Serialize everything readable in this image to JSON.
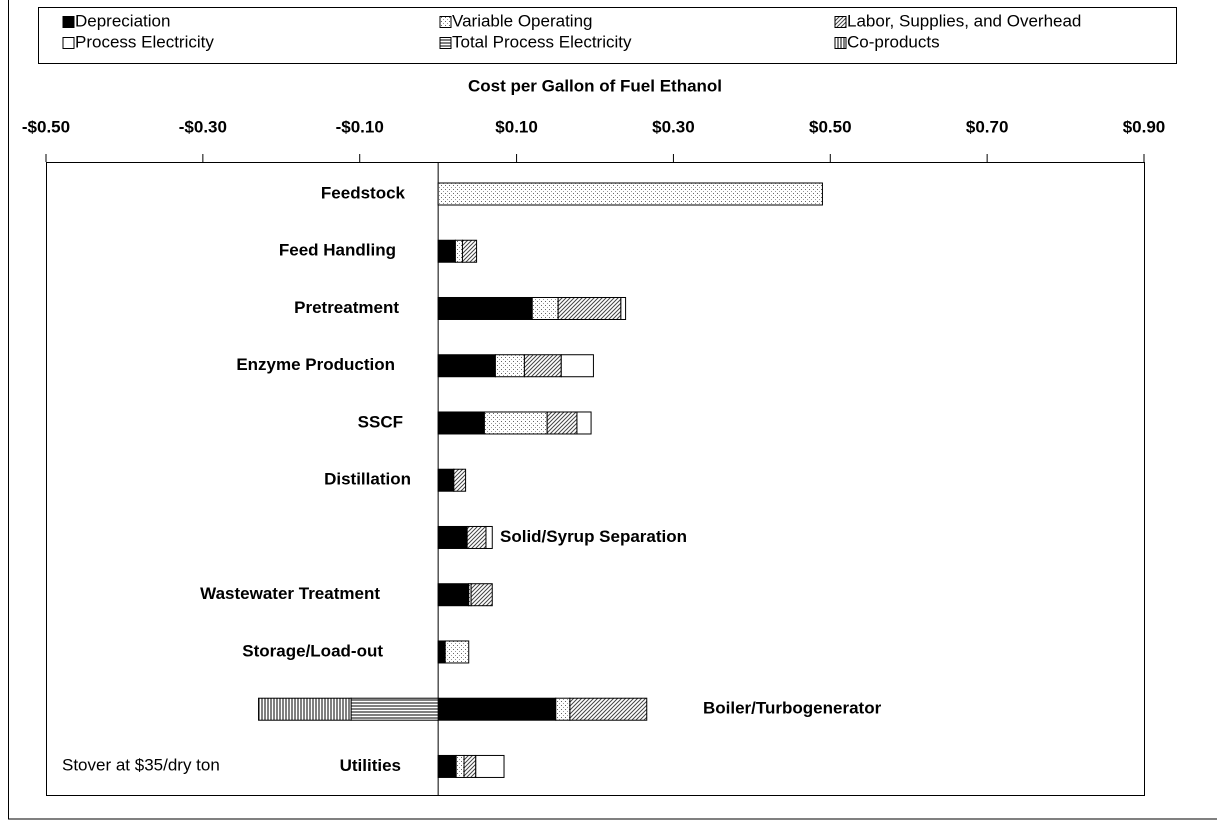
{
  "chart_data": {
    "type": "stacked-barh",
    "title": "Cost per Gallon of Fuel Ethanol",
    "categories": [
      "Feedstock",
      "Feed Handling",
      "Pretreatment",
      "Enzyme Production",
      "SSCF",
      "Distillation",
      "Solid/Syrup Separation",
      "Wastewater Treatment",
      "Storage/Load-out",
      "Boiler/Turbogenerator",
      "Utilities"
    ],
    "series": [
      {
        "name": "Depreciation",
        "color": "#000000",
        "pattern": "solid",
        "values": [
          null,
          0.022,
          0.12,
          0.073,
          0.059,
          0.02,
          0.037,
          0.039,
          0.009,
          0.15,
          0.023
        ]
      },
      {
        "name": "Variable Operating",
        "color": "#ffffff",
        "pattern": "dots",
        "values": [
          0.49,
          0.009,
          0.033,
          0.037,
          0.08,
          null,
          null,
          0.003,
          0.03,
          0.018,
          0.01
        ]
      },
      {
        "name": "Labor, Supplies, and Overhead",
        "color": "#ffffff",
        "pattern": "diagonal",
        "values": [
          null,
          0.018,
          0.08,
          0.047,
          0.038,
          0.015,
          0.024,
          0.027,
          null,
          0.098,
          0.015
        ]
      },
      {
        "name": "Process Electricity",
        "color": "#ffffff",
        "pattern": "none",
        "values": [
          null,
          null,
          0.006,
          0.041,
          0.018,
          null,
          0.008,
          null,
          null,
          null,
          0.036
        ]
      },
      {
        "name": "Total Process Electricity",
        "color": "#ffffff",
        "pattern": "horizontal",
        "values": [
          null,
          null,
          null,
          null,
          null,
          null,
          null,
          null,
          null,
          -0.111,
          null
        ]
      },
      {
        "name": "Co-products",
        "color": "#ffffff",
        "pattern": "vertical",
        "values": [
          null,
          null,
          null,
          null,
          null,
          null,
          null,
          null,
          null,
          -0.118,
          null
        ]
      }
    ],
    "xlim": [
      -0.5,
      0.9
    ],
    "xticks": [
      {
        "value": -0.5,
        "label": "-$0.50"
      },
      {
        "value": -0.3,
        "label": "-$0.30"
      },
      {
        "value": -0.1,
        "label": "-$0.10"
      },
      {
        "value": 0.1,
        "label": "$0.10"
      },
      {
        "value": 0.3,
        "label": "$0.30"
      },
      {
        "value": 0.5,
        "label": "$0.50"
      },
      {
        "value": 0.7,
        "label": "$0.70"
      },
      {
        "value": 0.9,
        "label": "$0.90"
      }
    ],
    "annotation": "Stover at $35/dry ton"
  }
}
